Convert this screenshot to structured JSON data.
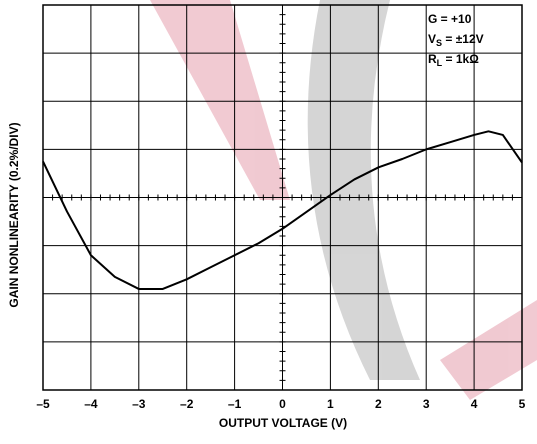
{
  "chart_data": {
    "type": "line",
    "x_label": "OUTPUT VOLTAGE (V)",
    "y_label": "GAIN NONLINEARITY (0.2%/DIV)",
    "annotations": [
      {
        "text": "G = +10"
      },
      {
        "text": "V",
        "sub": "S",
        "rest": " = ±12V"
      },
      {
        "text": "R",
        "sub": "L",
        "rest": " = 1kΩ"
      }
    ],
    "x": [
      -5,
      -4.5,
      -4,
      -3.5,
      -3,
      -2.5,
      -2,
      -1.5,
      -1,
      -0.5,
      0,
      0.5,
      1,
      1.5,
      2,
      2.5,
      3,
      3.5,
      4,
      4.3,
      4.6,
      5
    ],
    "series": [
      {
        "color": "#000000",
        "values": [
          0.15,
          -0.058,
          -0.24,
          -0.33,
          -0.38,
          -0.38,
          -0.34,
          -0.29,
          -0.24,
          -0.19,
          -0.13,
          -0.06,
          0.01,
          0.075,
          0.125,
          0.16,
          0.2,
          0.23,
          0.26,
          0.275,
          0.26,
          0.145
        ]
      }
    ],
    "xlim": [
      -5,
      5
    ],
    "xticks": [
      {
        "value": -5,
        "label": "–5"
      },
      {
        "value": -4,
        "label": "–4"
      },
      {
        "value": -3,
        "label": "–3"
      },
      {
        "value": -2,
        "label": "–2"
      },
      {
        "value": -1,
        "label": "–1"
      },
      0,
      1,
      2,
      3,
      4,
      5
    ],
    "ylim": [
      -0.8,
      0.8
    ],
    "yticks": [
      -0.8,
      -0.6,
      -0.4,
      -0.2,
      0,
      0.2,
      0.4,
      0.6,
      0.8
    ],
    "grid": true
  }
}
